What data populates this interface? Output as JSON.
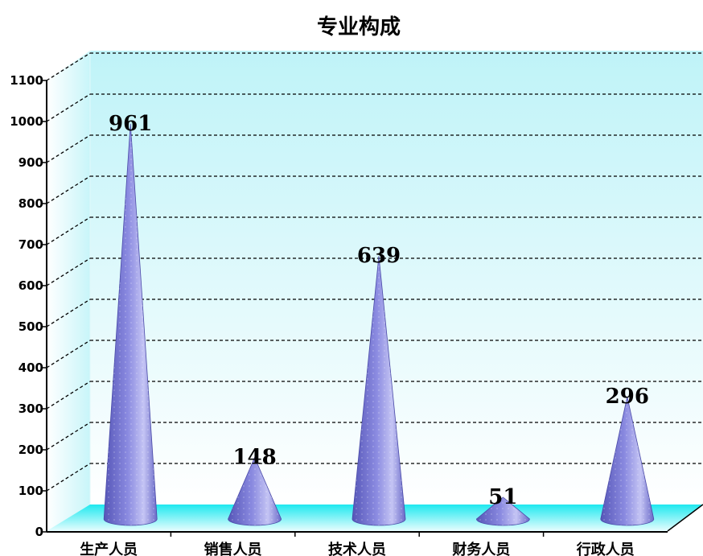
{
  "chart_data": {
    "type": "bar",
    "title": "专业构成",
    "categories": [
      "生产人员",
      "销售人员",
      "技术人员",
      "财务人员",
      "行政人员"
    ],
    "values": [
      961,
      148,
      639,
      51,
      296
    ],
    "ylim": [
      0,
      1100
    ],
    "yticks": [
      0,
      100,
      200,
      300,
      400,
      500,
      600,
      700,
      800,
      900,
      1000,
      1100
    ],
    "xlabel": "",
    "ylabel": "",
    "grid": true,
    "data_labels": true,
    "colors": {
      "cone": "#8a8ae0",
      "cone_dark": "#5656b8",
      "cone_light": "#c4c4f4",
      "back_wall_top": "#bff3f8",
      "back_wall_bottom": "#ffffff",
      "floor": "#1ee8ef"
    }
  }
}
